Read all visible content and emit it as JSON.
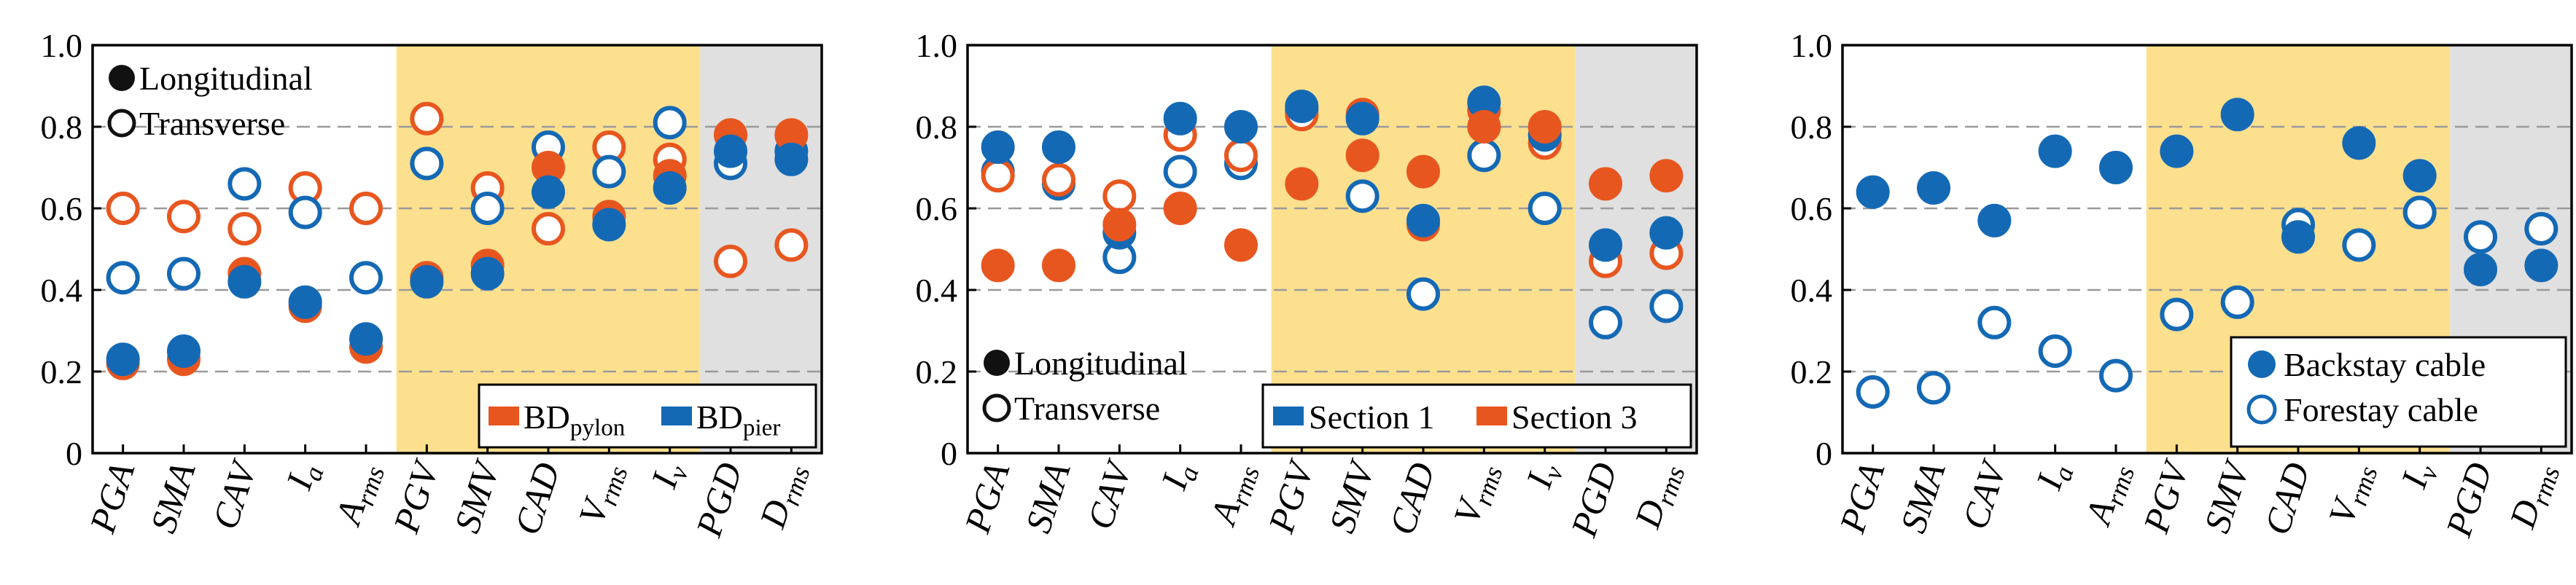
{
  "chart_data": [
    {
      "type": "scatter",
      "categories": [
        "PGA",
        "SMA",
        "CAV",
        "Ia",
        "Arms",
        "PGV",
        "SMV",
        "CAD",
        "Vrms",
        "Iv",
        "PGD",
        "Drms"
      ],
      "category_labels": [
        {
          "main": "PGA",
          "sub": ""
        },
        {
          "main": "SMA",
          "sub": ""
        },
        {
          "main": "CAV",
          "sub": ""
        },
        {
          "main": "I",
          "sub": "a"
        },
        {
          "main": "A",
          "sub": "rms"
        },
        {
          "main": "PGV",
          "sub": ""
        },
        {
          "main": "SMV",
          "sub": ""
        },
        {
          "main": "CAD",
          "sub": ""
        },
        {
          "main": "V",
          "sub": "rms"
        },
        {
          "main": "I",
          "sub": "v"
        },
        {
          "main": "PGD",
          "sub": ""
        },
        {
          "main": "D",
          "sub": "rms"
        }
      ],
      "ylim": [
        0,
        1.0
      ],
      "yticks": [
        "0",
        "0.2",
        "0.4",
        "0.6",
        "0.8",
        "1.0"
      ],
      "bands": [
        {
          "from": "PGV",
          "to": "Iv",
          "color": "#fde08e",
          "group": "velocity"
        },
        {
          "from": "PGD",
          "to": "Drms",
          "color": "#e0e0e0",
          "group": "displacement"
        }
      ],
      "series": [
        {
          "name": "BDpylon",
          "marker": "filled",
          "direction": "Longitudinal",
          "color": "#e8561f",
          "values": [
            0.22,
            0.23,
            0.44,
            0.36,
            0.26,
            0.43,
            0.46,
            0.7,
            0.58,
            0.68,
            0.78,
            0.78
          ]
        },
        {
          "name": "BDpier",
          "marker": "filled",
          "direction": "Longitudinal",
          "color": "#1469b5",
          "values": [
            0.23,
            0.25,
            0.42,
            0.37,
            0.28,
            0.42,
            0.44,
            0.64,
            0.56,
            0.65,
            0.74,
            0.72
          ]
        },
        {
          "name": "BDpylon",
          "marker": "hollow",
          "direction": "Transverse",
          "color": "#e8561f",
          "values": [
            0.6,
            0.58,
            0.55,
            0.65,
            0.6,
            0.82,
            0.65,
            0.55,
            0.75,
            0.72,
            0.47,
            0.51
          ]
        },
        {
          "name": "BDpier",
          "marker": "hollow",
          "direction": "Transverse",
          "color": "#1469b5",
          "values": [
            0.43,
            0.44,
            0.66,
            0.59,
            0.43,
            0.71,
            0.6,
            0.75,
            0.69,
            0.81,
            0.71,
            0.74
          ]
        }
      ],
      "legend_markers": {
        "filled": "Longitudinal",
        "hollow": "Transverse",
        "position": "top-left"
      },
      "legend_colors": {
        "position": "bottom-right",
        "items": [
          {
            "main": "BD",
            "sub": "pylon",
            "color": "#e8561f"
          },
          {
            "main": "BD",
            "sub": "pier",
            "color": "#1469b5"
          }
        ]
      }
    },
    {
      "type": "scatter",
      "categories": [
        "PGA",
        "SMA",
        "CAV",
        "Ia",
        "Arms",
        "PGV",
        "SMV",
        "CAD",
        "Vrms",
        "Iv",
        "PGD",
        "Drms"
      ],
      "category_labels": [
        {
          "main": "PGA",
          "sub": ""
        },
        {
          "main": "SMA",
          "sub": ""
        },
        {
          "main": "CAV",
          "sub": ""
        },
        {
          "main": "I",
          "sub": "a"
        },
        {
          "main": "A",
          "sub": "rms"
        },
        {
          "main": "PGV",
          "sub": ""
        },
        {
          "main": "SMV",
          "sub": ""
        },
        {
          "main": "CAD",
          "sub": ""
        },
        {
          "main": "V",
          "sub": "rms"
        },
        {
          "main": "I",
          "sub": "v"
        },
        {
          "main": "PGD",
          "sub": ""
        },
        {
          "main": "D",
          "sub": "rms"
        }
      ],
      "ylim": [
        0,
        1.0
      ],
      "yticks": [
        "0",
        "0.2",
        "0.4",
        "0.6",
        "0.8",
        "1.0"
      ],
      "bands": [
        {
          "from": "PGV",
          "to": "Iv",
          "color": "#fde08e",
          "group": "velocity"
        },
        {
          "from": "PGD",
          "to": "Drms",
          "color": "#e0e0e0",
          "group": "displacement"
        }
      ],
      "series": [
        {
          "name": "Section 1",
          "marker": "filled",
          "direction": "Longitudinal",
          "color": "#1469b5",
          "values": [
            0.75,
            0.75,
            0.54,
            0.82,
            0.8,
            0.85,
            0.82,
            0.57,
            0.86,
            0.78,
            0.51,
            0.54
          ]
        },
        {
          "name": "Section 3",
          "marker": "filled",
          "direction": "Longitudinal",
          "color": "#e8561f",
          "values": [
            0.46,
            0.46,
            0.56,
            0.6,
            0.51,
            0.66,
            0.73,
            0.69,
            0.8,
            0.8,
            0.66,
            0.68
          ]
        },
        {
          "name": "Section 1",
          "marker": "hollow",
          "direction": "Transverse",
          "color": "#1469b5",
          "values": [
            0.69,
            0.66,
            0.48,
            0.69,
            0.71,
            0.84,
            0.63,
            0.39,
            0.73,
            0.6,
            0.32,
            0.36
          ]
        },
        {
          "name": "Section 3",
          "marker": "hollow",
          "direction": "Transverse",
          "color": "#e8561f",
          "values": [
            0.68,
            0.67,
            0.63,
            0.78,
            0.73,
            0.83,
            0.83,
            0.56,
            0.84,
            0.76,
            0.47,
            0.49
          ]
        }
      ],
      "legend_markers": {
        "filled": "Longitudinal",
        "hollow": "Transverse",
        "position": "bottom-left"
      },
      "legend_colors": {
        "position": "bottom-right",
        "items": [
          {
            "main": "Section 1",
            "sub": "",
            "color": "#1469b5"
          },
          {
            "main": "Section 3",
            "sub": "",
            "color": "#e8561f"
          }
        ]
      }
    },
    {
      "type": "scatter",
      "categories": [
        "PGA",
        "SMA",
        "CAV",
        "Ia",
        "Arms",
        "PGV",
        "SMV",
        "CAD",
        "Vrms",
        "Iv",
        "PGD",
        "Drms"
      ],
      "category_labels": [
        {
          "main": "PGA",
          "sub": ""
        },
        {
          "main": "SMA",
          "sub": ""
        },
        {
          "main": "CAV",
          "sub": ""
        },
        {
          "main": "I",
          "sub": "a"
        },
        {
          "main": "A",
          "sub": "rms"
        },
        {
          "main": "PGV",
          "sub": ""
        },
        {
          "main": "SMV",
          "sub": ""
        },
        {
          "main": "CAD",
          "sub": ""
        },
        {
          "main": "V",
          "sub": "rms"
        },
        {
          "main": "I",
          "sub": "v"
        },
        {
          "main": "PGD",
          "sub": ""
        },
        {
          "main": "D",
          "sub": "rms"
        }
      ],
      "ylim": [
        0,
        1.0
      ],
      "yticks": [
        "0",
        "0.2",
        "0.4",
        "0.6",
        "0.8",
        "1.0"
      ],
      "bands": [
        {
          "from": "PGV",
          "to": "Iv",
          "color": "#fde08e",
          "group": "velocity"
        },
        {
          "from": "PGD",
          "to": "Drms",
          "color": "#e0e0e0",
          "group": "displacement"
        }
      ],
      "series": [
        {
          "name": "Backstay cable",
          "marker": "filled",
          "color": "#1469b5",
          "values": [
            0.64,
            0.65,
            0.57,
            0.74,
            0.7,
            0.74,
            0.83,
            0.53,
            0.76,
            0.68,
            0.45,
            0.46
          ]
        },
        {
          "name": "Forestay cable",
          "marker": "hollow",
          "color": "#1469b5",
          "values": [
            0.15,
            0.16,
            0.32,
            0.25,
            0.19,
            0.34,
            0.37,
            0.56,
            0.51,
            0.59,
            0.53,
            0.55
          ]
        }
      ],
      "legend_series": {
        "position": "bottom-right",
        "items": [
          "Backstay cable",
          "Forestay cable"
        ]
      }
    }
  ]
}
